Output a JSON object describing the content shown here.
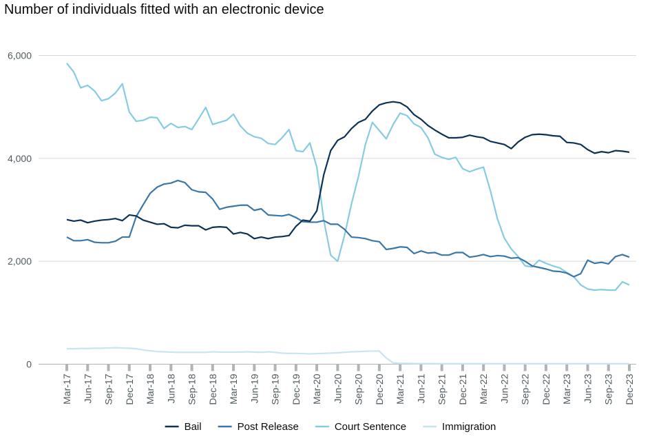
{
  "chart_data": {
    "type": "line",
    "title": "Number of individuals fitted with an electronic device",
    "xlabel": "",
    "ylabel": "",
    "ylim": [
      0,
      6000
    ],
    "yticks": [
      0,
      2000,
      4000,
      6000
    ],
    "ytick_labels": [
      "0",
      "2,000",
      "4,000",
      "6,000"
    ],
    "x": [
      "Mar-17",
      "Apr-17",
      "May-17",
      "Jun-17",
      "Jul-17",
      "Aug-17",
      "Sep-17",
      "Oct-17",
      "Nov-17",
      "Dec-17",
      "Jan-18",
      "Feb-18",
      "Mar-18",
      "Apr-18",
      "May-18",
      "Jun-18",
      "Jul-18",
      "Aug-18",
      "Sep-18",
      "Oct-18",
      "Nov-18",
      "Dec-18",
      "Jan-19",
      "Feb-19",
      "Mar-19",
      "Apr-19",
      "May-19",
      "Jun-19",
      "Jul-19",
      "Aug-19",
      "Sep-19",
      "Oct-19",
      "Nov-19",
      "Dec-19",
      "Jan-20",
      "Feb-20",
      "Mar-20",
      "Apr-20",
      "May-20",
      "Jun-20",
      "Jul-20",
      "Aug-20",
      "Sep-20",
      "Oct-20",
      "Nov-20",
      "Dec-20",
      "Jan-21",
      "Feb-21",
      "Mar-21",
      "Apr-21",
      "May-21",
      "Jun-21",
      "Jul-21",
      "Aug-21",
      "Sep-21",
      "Oct-21",
      "Nov-21",
      "Dec-21",
      "Jan-22",
      "Feb-22",
      "Mar-22",
      "Apr-22",
      "May-22",
      "Jun-22",
      "Jul-22",
      "Aug-22",
      "Sep-22",
      "Oct-22",
      "Nov-22",
      "Dec-22",
      "Jan-23",
      "Feb-23",
      "Mar-23",
      "Apr-23",
      "May-23",
      "Jun-23",
      "Jul-23",
      "Aug-23",
      "Sep-23",
      "Oct-23",
      "Nov-23",
      "Dec-23"
    ],
    "xtick_labels": [
      "Mar-17",
      "Jun-17",
      "Sep-17",
      "Dec-17",
      "Mar-18",
      "Jun-18",
      "Sep-18",
      "Dec-18",
      "Mar-19",
      "Jun-19",
      "Sep-19",
      "Dec-19",
      "Mar-20",
      "Jun-20",
      "Sep-20",
      "Dec-20",
      "Mar-21",
      "Jun-21",
      "Sep-21",
      "Dec-21",
      "Mar-22",
      "Jun-22",
      "Sep-22",
      "Dec-22",
      "Mar-23",
      "Jun-23",
      "Sep-23",
      "Dec-23"
    ],
    "grid": true,
    "legend_position": "bottom",
    "series": [
      {
        "name": "Bail",
        "color": "#0b3155",
        "values": [
          2810,
          2780,
          2800,
          2750,
          2780,
          2800,
          2810,
          2830,
          2790,
          2900,
          2880,
          2800,
          2760,
          2720,
          2730,
          2660,
          2650,
          2700,
          2690,
          2690,
          2610,
          2660,
          2670,
          2660,
          2530,
          2560,
          2530,
          2440,
          2470,
          2440,
          2470,
          2480,
          2500,
          2680,
          2800,
          2780,
          2980,
          3680,
          4150,
          4350,
          4420,
          4580,
          4700,
          4760,
          4920,
          5040,
          5080,
          5100,
          5080,
          5000,
          4850,
          4760,
          4640,
          4550,
          4470,
          4400,
          4400,
          4410,
          4450,
          4420,
          4400,
          4330,
          4300,
          4270,
          4190,
          4320,
          4410,
          4460,
          4470,
          4460,
          4440,
          4430,
          4310,
          4300,
          4270,
          4170,
          4100,
          4130,
          4110,
          4150,
          4140,
          4120
        ]
      },
      {
        "name": "Post Release",
        "color": "#3a76a8",
        "values": [
          2470,
          2400,
          2400,
          2420,
          2370,
          2360,
          2360,
          2390,
          2470,
          2470,
          2870,
          3100,
          3320,
          3440,
          3500,
          3520,
          3570,
          3530,
          3390,
          3350,
          3340,
          3210,
          3010,
          3050,
          3070,
          3090,
          3090,
          2990,
          3020,
          2900,
          2890,
          2880,
          2910,
          2850,
          2770,
          2760,
          2760,
          2790,
          2720,
          2720,
          2620,
          2470,
          2460,
          2440,
          2400,
          2380,
          2230,
          2250,
          2280,
          2270,
          2150,
          2200,
          2160,
          2170,
          2120,
          2120,
          2170,
          2170,
          2080,
          2100,
          2130,
          2090,
          2110,
          2100,
          2060,
          2070,
          2000,
          1910,
          1880,
          1850,
          1810,
          1800,
          1770,
          1700,
          1760,
          2020,
          1960,
          1980,
          1950,
          2090,
          2130,
          2080
        ]
      },
      {
        "name": "Court Sentence",
        "color": "#86cbe2",
        "values": [
          5850,
          5680,
          5370,
          5420,
          5310,
          5120,
          5160,
          5270,
          5450,
          4900,
          4720,
          4740,
          4800,
          4790,
          4580,
          4680,
          4600,
          4620,
          4560,
          4770,
          4990,
          4660,
          4700,
          4740,
          4860,
          4630,
          4490,
          4420,
          4390,
          4290,
          4270,
          4400,
          4560,
          4150,
          4130,
          4300,
          3830,
          2800,
          2120,
          2000,
          2510,
          3120,
          3650,
          4270,
          4700,
          4540,
          4380,
          4660,
          4880,
          4830,
          4670,
          4600,
          4400,
          4080,
          4020,
          3980,
          4020,
          3800,
          3740,
          3790,
          3830,
          3370,
          2830,
          2450,
          2240,
          2090,
          1910,
          1890,
          2020,
          1960,
          1910,
          1870,
          1780,
          1700,
          1540,
          1460,
          1440,
          1450,
          1440,
          1440,
          1600,
          1540
        ]
      },
      {
        "name": "Immigration",
        "color": "#c7e5ef",
        "values": [
          300,
          300,
          305,
          305,
          310,
          310,
          315,
          320,
          315,
          310,
          300,
          275,
          260,
          245,
          240,
          235,
          230,
          230,
          230,
          230,
          230,
          240,
          235,
          235,
          235,
          235,
          240,
          235,
          230,
          240,
          230,
          215,
          210,
          210,
          205,
          200,
          205,
          210,
          215,
          220,
          230,
          240,
          245,
          250,
          255,
          255,
          120,
          25,
          15,
          15,
          12,
          12,
          12,
          10,
          10,
          10,
          10,
          10,
          10,
          10,
          10,
          8,
          8,
          8,
          8,
          8,
          8,
          8,
          8,
          8,
          8,
          8,
          8,
          8,
          8,
          8,
          8,
          8,
          8,
          8,
          8,
          8
        ]
      }
    ]
  }
}
